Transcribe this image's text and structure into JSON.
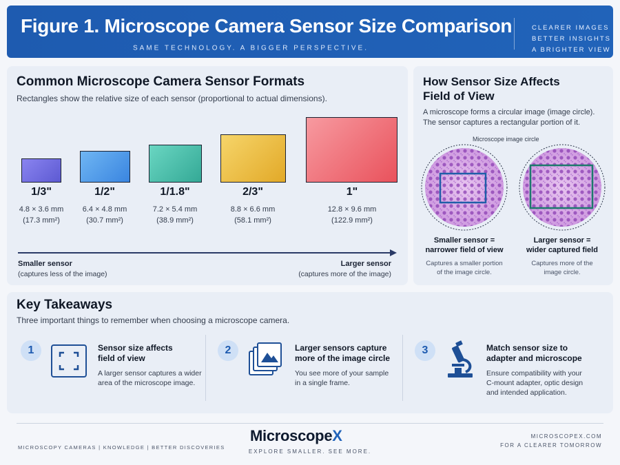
{
  "header": {
    "title": "Figure 1. Microscope Camera Sensor Size Comparison",
    "subtitle": "SAME TECHNOLOGY. A BIGGER PERSPECTIVE.",
    "taglines": [
      "CLEARER IMAGES",
      "BETTER INSIGHTS",
      "A BRIGHTER VIEW"
    ]
  },
  "formats": {
    "heading": "Common Microscope Camera Sensor Formats",
    "description": "Rectangles show the relative size of each sensor (proportional to actual dimensions).",
    "sensors": [
      {
        "name": "1/3\"",
        "dims": "4.8 × 3.6 mm",
        "area": "(17.3 mm²)",
        "color": "#6f6fe0"
      },
      {
        "name": "1/2\"",
        "dims": "6.4 × 4.8 mm",
        "area": "(30.7 mm²)",
        "color": "#4f9ae8"
      },
      {
        "name": "1/1.8\"",
        "dims": "7.2 × 5.4 mm",
        "area": "(38.9 mm²)",
        "color": "#4cc0aa"
      },
      {
        "name": "2/3\"",
        "dims": "8.8 × 6.6 mm",
        "area": "(58.1 mm²)",
        "color": "#e8b93c"
      },
      {
        "name": "1\"",
        "dims": "12.8 × 9.6 mm",
        "area": "(122.9 mm²)",
        "color": "#ee6a72"
      }
    ],
    "axis": {
      "left_label": "Smaller sensor",
      "left_sub": "(captures less of the image)",
      "right_label": "Larger sensor",
      "right_sub": "(captures more of the image)"
    }
  },
  "fov": {
    "heading_line1": "How Sensor Size Affects",
    "heading_line2": "Field of View",
    "description_line1": "A microscope forms a  circular image (image circle).",
    "description_line2": "The sensor captures a  rectangular portion of it.",
    "circle_label": "Microscope image circle",
    "small": {
      "caption_line1": "Smaller sensor =",
      "caption_line2": "narrower field of view",
      "sub_line1": "Captures a smaller portion",
      "sub_line2": "of the image circle."
    },
    "large": {
      "caption_line1": "Larger sensor =",
      "caption_line2": "wider captured field",
      "sub_line1": "Captures more of the",
      "sub_line2": "image circle."
    }
  },
  "takeaways": {
    "heading": "Key Takeaways",
    "description": "Three important things to remember when choosing a microscope camera.",
    "items": [
      {
        "number": "1",
        "title_line1": "Sensor size affects",
        "title_line2": "field of view",
        "text_line1": "A larger sensor captures a wider",
        "text_line2": "area of the microscope image.",
        "text_line3": "",
        "icon": "frame-icon"
      },
      {
        "number": "2",
        "title_line1": "Larger sensors capture",
        "title_line2": "more of the image circle",
        "text_line1": "You see more of your sample",
        "text_line2": "in a single frame.",
        "text_line3": "",
        "icon": "images-stack-icon"
      },
      {
        "number": "3",
        "title_line1": "Match sensor size to",
        "title_line2": "adapter and microscope",
        "text_line1": "Ensure compatibility with your",
        "text_line2": "C-mount adapter, optic design",
        "text_line3": "and intended application.",
        "icon": "microscope-icon"
      }
    ]
  },
  "footer": {
    "left": "MICROSCOPY CAMERAS   |   KNOWLEDGE   |   BETTER DISCOVERIES",
    "brand_main": "Microscope",
    "brand_x": "X",
    "brand_tagline": "EXPLORE SMALLER. SEE MORE.",
    "right_line1": "MICROSCOPEX.COM",
    "right_line2": "FOR A CLEARER TOMORROW"
  }
}
